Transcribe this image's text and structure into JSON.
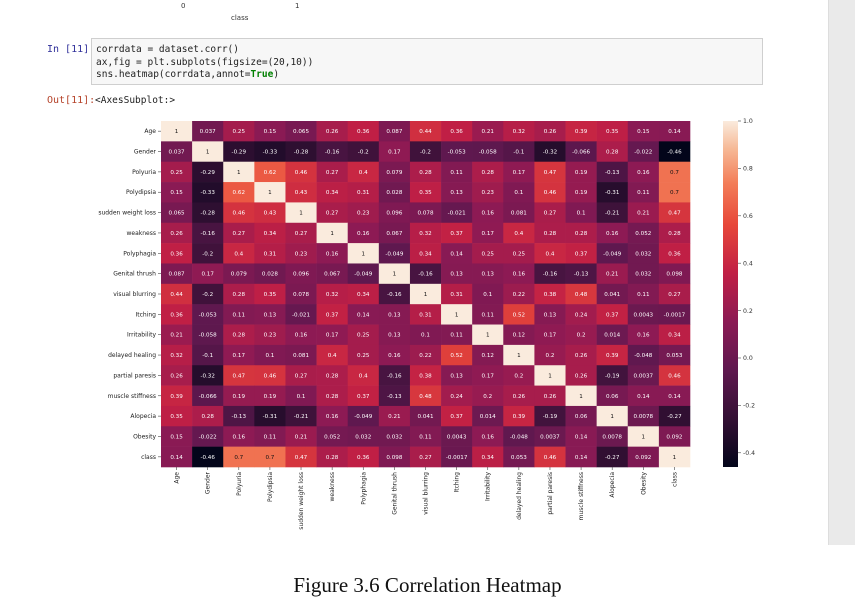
{
  "previous_output": {
    "ticks": [
      "0",
      "1"
    ],
    "xlabel": "class"
  },
  "cell_in": {
    "prompt": "In [11]:",
    "lines": [
      {
        "pre": "corrdata = dataset.corr()",
        "kw": "",
        "post": ""
      },
      {
        "pre": "ax,fig = plt.subplots(figsize=(20,10))",
        "kw": "",
        "post": ""
      },
      {
        "pre": "sns.heatmap(corrdata,annot=",
        "kw": "True",
        "post": ")"
      }
    ]
  },
  "cell_out": {
    "prompt": "Out[11]:",
    "text": "<AxesSubplot:>"
  },
  "caption": "Figure 3.6 Correlation Heatmap",
  "chart_data": {
    "type": "heatmap",
    "colormap": "rocket",
    "annot": true,
    "labels": [
      "Age",
      "Gender",
      "Polyuria",
      "Polydipsia",
      "sudden weight loss",
      "weakness",
      "Polyphagia",
      "Genital thrush",
      "visual blurring",
      "Itching",
      "Irritability",
      "delayed healing",
      "partial paresis",
      "muscle stiffness",
      "Alopecia",
      "Obesity",
      "class"
    ],
    "values": [
      [
        1,
        0.037,
        0.25,
        0.15,
        0.065,
        0.26,
        0.36,
        0.087,
        0.44,
        0.36,
        0.21,
        0.32,
        0.26,
        0.39,
        0.35,
        0.15,
        0.14
      ],
      [
        0.037,
        1,
        -0.29,
        -0.33,
        -0.28,
        -0.16,
        -0.2,
        0.17,
        -0.2,
        -0.053,
        -0.058,
        -0.1,
        -0.32,
        -0.066,
        0.28,
        -0.022,
        -0.46
      ],
      [
        0.25,
        -0.29,
        1,
        0.62,
        0.46,
        0.27,
        0.4,
        0.079,
        0.28,
        0.11,
        0.28,
        0.17,
        0.47,
        0.19,
        -0.13,
        0.16,
        0.7
      ],
      [
        0.15,
        -0.33,
        0.62,
        1,
        0.43,
        0.34,
        0.31,
        0.028,
        0.35,
        0.13,
        0.23,
        0.1,
        0.46,
        0.19,
        -0.31,
        0.11,
        0.7
      ],
      [
        0.065,
        -0.28,
        0.46,
        0.43,
        1,
        0.27,
        0.23,
        0.096,
        0.078,
        -0.021,
        0.16,
        0.081,
        0.27,
        0.1,
        -0.21,
        0.21,
        0.47
      ],
      [
        0.26,
        -0.16,
        0.27,
        0.34,
        0.27,
        1,
        0.16,
        0.067,
        0.32,
        0.37,
        0.17,
        0.4,
        0.28,
        0.28,
        0.16,
        0.052,
        0.28
      ],
      [
        0.36,
        -0.2,
        0.4,
        0.31,
        0.23,
        0.16,
        1,
        -0.049,
        0.34,
        0.14,
        0.25,
        0.25,
        0.4,
        0.37,
        -0.049,
        0.032,
        0.36
      ],
      [
        0.087,
        0.17,
        0.079,
        0.028,
        0.096,
        0.067,
        -0.049,
        1,
        -0.16,
        0.13,
        0.13,
        0.16,
        -0.16,
        -0.13,
        0.21,
        0.032,
        0.098
      ],
      [
        0.44,
        -0.2,
        0.28,
        0.35,
        0.078,
        0.32,
        0.34,
        -0.16,
        1,
        0.31,
        0.1,
        0.22,
        0.38,
        0.48,
        0.041,
        0.11,
        0.27
      ],
      [
        0.36,
        -0.053,
        0.11,
        0.13,
        -0.021,
        0.37,
        0.14,
        0.13,
        0.31,
        1,
        0.11,
        0.52,
        0.13,
        0.24,
        0.37,
        0.0043,
        -0.0017
      ],
      [
        0.21,
        -0.058,
        0.28,
        0.23,
        0.16,
        0.17,
        0.25,
        0.13,
        0.1,
        0.11,
        1,
        0.12,
        0.17,
        0.2,
        0.014,
        0.16,
        0.34
      ],
      [
        0.32,
        -0.1,
        0.17,
        0.1,
        0.081,
        0.4,
        0.25,
        0.16,
        0.22,
        0.52,
        0.12,
        1,
        0.2,
        0.26,
        0.39,
        -0.048,
        0.053
      ],
      [
        0.26,
        -0.32,
        0.47,
        0.46,
        0.27,
        0.28,
        0.4,
        -0.16,
        0.38,
        0.13,
        0.17,
        0.2,
        1,
        0.26,
        -0.19,
        0.0037,
        0.46
      ],
      [
        0.39,
        -0.066,
        0.19,
        0.19,
        0.1,
        0.28,
        0.37,
        -0.13,
        0.48,
        0.24,
        0.2,
        0.26,
        0.26,
        1,
        0.06,
        0.14,
        0.14
      ],
      [
        0.35,
        0.28,
        -0.13,
        -0.31,
        -0.21,
        0.16,
        -0.049,
        0.21,
        0.041,
        0.37,
        0.014,
        0.39,
        -0.19,
        0.06,
        1,
        0.0078,
        -0.27
      ],
      [
        0.15,
        -0.022,
        0.16,
        0.11,
        0.21,
        0.052,
        0.032,
        0.032,
        0.11,
        0.0043,
        0.16,
        -0.048,
        0.0037,
        0.14,
        0.0078,
        1,
        0.092
      ],
      [
        0.14,
        -0.46,
        0.7,
        0.7,
        0.47,
        0.28,
        0.36,
        0.098,
        0.27,
        -0.0017,
        0.34,
        0.053,
        0.46,
        0.14,
        -0.27,
        0.092,
        1
      ]
    ],
    "vmin": -0.46,
    "vmax": 1.0,
    "colorbar_ticks": [
      "1.0",
      "0.8",
      "0.6",
      "0.4",
      "0.2",
      "0.0",
      "-0.2",
      "-0.4"
    ]
  }
}
